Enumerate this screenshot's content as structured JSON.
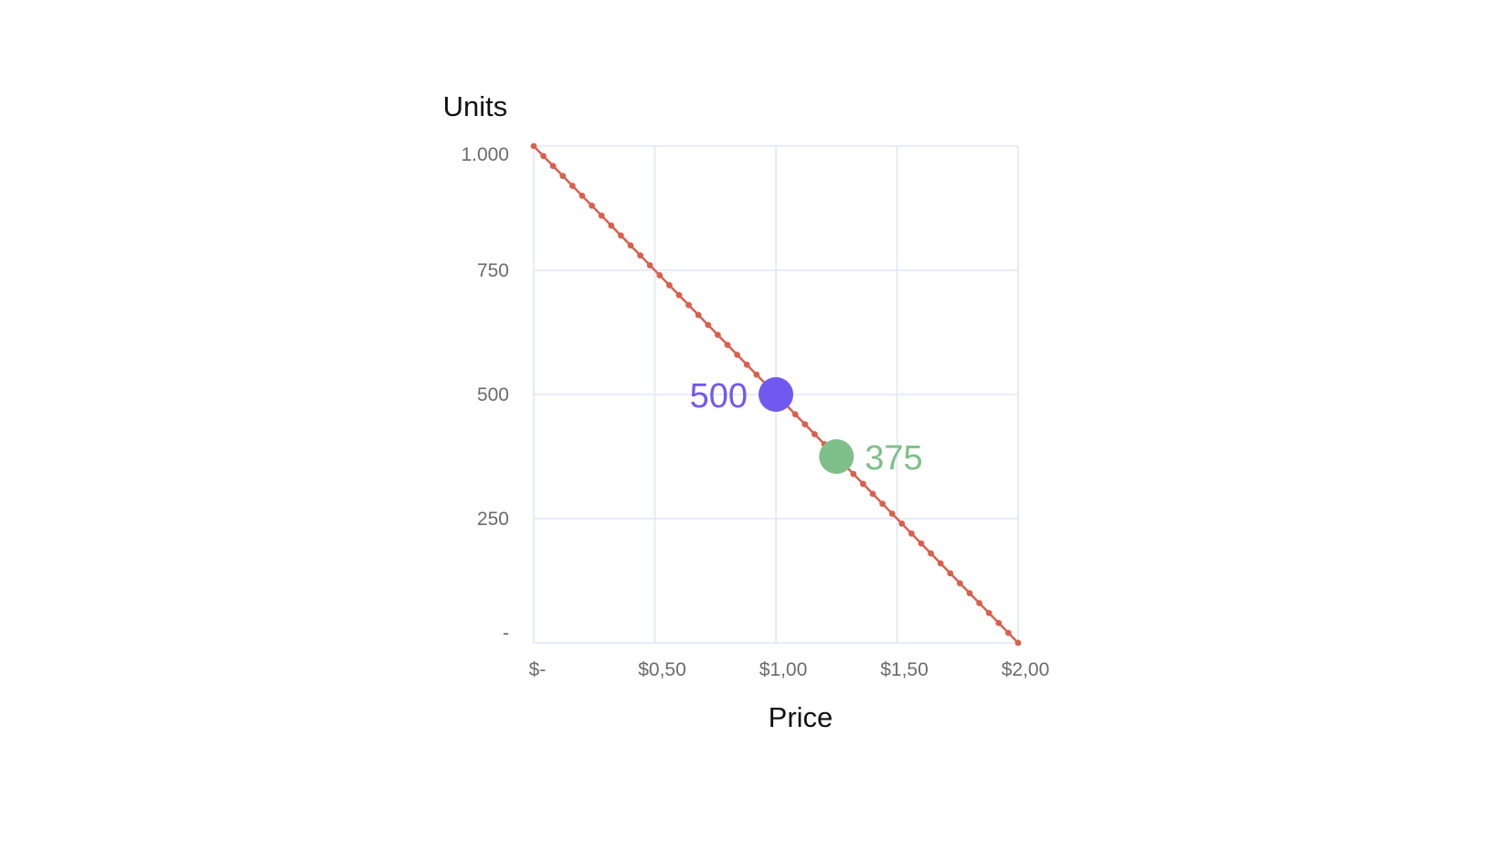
{
  "chart_data": {
    "type": "line",
    "xlabel": "Price",
    "ylabel": "Units",
    "xlim": [
      0,
      2
    ],
    "ylim": [
      0,
      1000
    ],
    "x_ticks": [
      0,
      0.5,
      1,
      1.5,
      2
    ],
    "x_tick_labels": [
      "$-",
      "$0,50",
      "$1,00",
      "$1,50",
      "$2,00"
    ],
    "y_ticks": [
      0,
      250,
      500,
      750,
      1000
    ],
    "y_tick_labels": [
      "-",
      "250",
      "500",
      "750",
      "1.000"
    ],
    "grid": true,
    "series": [
      {
        "x_start": 0,
        "x_end": 2,
        "x_step": 0.04,
        "y_formula": "1000 - 500 * x",
        "color": "#d9604d",
        "markers": true
      }
    ],
    "annotations": [
      {
        "x": 1.0,
        "y": 500,
        "label": "500",
        "color": "#7159f0",
        "label_side": "left"
      },
      {
        "x": 1.25,
        "y": 375,
        "label": "375",
        "color": "#7fbf8a",
        "label_side": "right"
      }
    ],
    "colors": {
      "grid": "#dde6f6",
      "tick_text": "#6b6b6b",
      "title_text": "#111111"
    }
  }
}
